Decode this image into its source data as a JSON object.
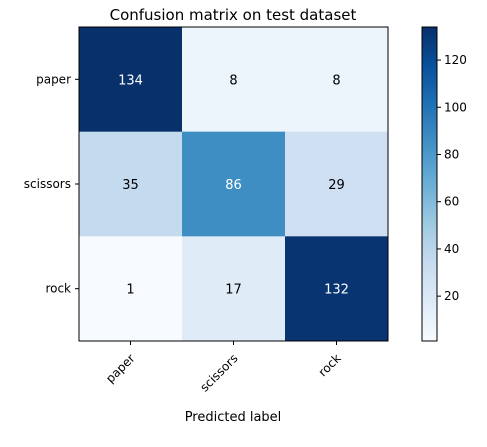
{
  "chart_data": {
    "type": "heatmap",
    "title": "Confusion matrix on test dataset",
    "xlabel": "Predicted label",
    "ylabel": "",
    "x_categories": [
      "paper",
      "scissors",
      "rock"
    ],
    "y_categories": [
      "paper",
      "scissors",
      "rock"
    ],
    "values": [
      [
        134,
        8,
        8
      ],
      [
        35,
        86,
        29
      ],
      [
        1,
        17,
        132
      ]
    ],
    "colormap": "Blues",
    "colorbar": {
      "range": [
        1,
        134
      ],
      "ticks": [
        20,
        40,
        60,
        80,
        100,
        120
      ]
    },
    "grid": false
  }
}
